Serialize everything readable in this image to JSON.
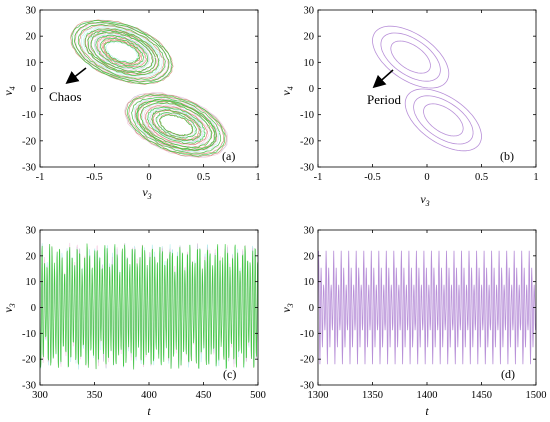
{
  "colors": {
    "chaos_primary": "#3cc83c",
    "chaos_secondary": "#d07050",
    "chaos_tint_a": "#e890c0",
    "chaos_tint_b": "#7fe0e0",
    "period": "#b890d8",
    "axis": "#000000"
  },
  "chart_data": [
    {
      "type": "scatter",
      "panel": "(a)",
      "xlabel": "v",
      "xlabel_sub": "3",
      "ylabel": "v",
      "ylabel_sub": "4",
      "xlim": [
        -1,
        1
      ],
      "ylim": [
        -30,
        30
      ],
      "xticks": [
        "-1",
        "-0.5",
        "0",
        "0.5",
        "1"
      ],
      "yticks": [
        "30",
        "20",
        "10",
        "0",
        "-10",
        "-20",
        "-30"
      ],
      "annotation": "Chaos",
      "series": [
        {
          "style": "chaotic-double-scroll",
          "upper_lobe": {
            "center": [
              -0.25,
              14
            ],
            "x_extent": [
              -0.65,
              0.25
            ],
            "y_extent": [
              2,
              25
            ]
          },
          "lower_lobe": {
            "center": [
              0.25,
              -14
            ],
            "x_extent": [
              -0.25,
              0.65
            ],
            "y_extent": [
              -25,
              -2
            ]
          }
        }
      ]
    },
    {
      "type": "scatter",
      "panel": "(b)",
      "xlabel": "v",
      "xlabel_sub": "3",
      "ylabel": "v",
      "ylabel_sub": "4",
      "xlim": [
        -1,
        1
      ],
      "ylim": [
        -30,
        30
      ],
      "xticks": [
        "-1",
        "-0.5",
        "0",
        "0.5",
        "1"
      ],
      "yticks": [
        "30",
        "20",
        "10",
        "0",
        "-10",
        "-20",
        "-30"
      ],
      "annotation": "Period",
      "series": [
        {
          "style": "periodic-orbit",
          "upper_loop": {
            "center": [
              -0.15,
              12
            ],
            "x_extent": [
              -0.5,
              0.2
            ],
            "y_extent": [
              2,
              22
            ]
          },
          "lower_loop": {
            "center": [
              0.15,
              -12
            ],
            "x_extent": [
              -0.2,
              0.5
            ],
            "y_extent": [
              -22,
              -2
            ]
          }
        }
      ]
    },
    {
      "type": "line",
      "panel": "(c)",
      "xlabel": "t",
      "ylabel": "v",
      "ylabel_sub": "3",
      "xlim": [
        300,
        500
      ],
      "ylim": [
        -30,
        30
      ],
      "xticks": [
        "300",
        "350",
        "400",
        "450",
        "500"
      ],
      "yticks": [
        "30",
        "20",
        "10",
        "0",
        "-10",
        "-20",
        "-30"
      ],
      "series": [
        {
          "style": "chaotic-oscillation",
          "amplitude_range": [
            -24,
            25
          ],
          "approx_period": 2.3
        }
      ]
    },
    {
      "type": "line",
      "panel": "(d)",
      "xlabel": "t",
      "ylabel": "v",
      "ylabel_sub": "3",
      "xlim": [
        1300,
        1500
      ],
      "ylim": [
        -30,
        30
      ],
      "xticks": [
        "1300",
        "1350",
        "1400",
        "1450",
        "1500"
      ],
      "yticks": [
        "30",
        "20",
        "10",
        "0",
        "-10",
        "-20",
        "-30"
      ],
      "series": [
        {
          "style": "periodic-oscillation",
          "amplitude_range": [
            -22,
            22
          ],
          "approx_period": 2.3
        }
      ]
    }
  ]
}
